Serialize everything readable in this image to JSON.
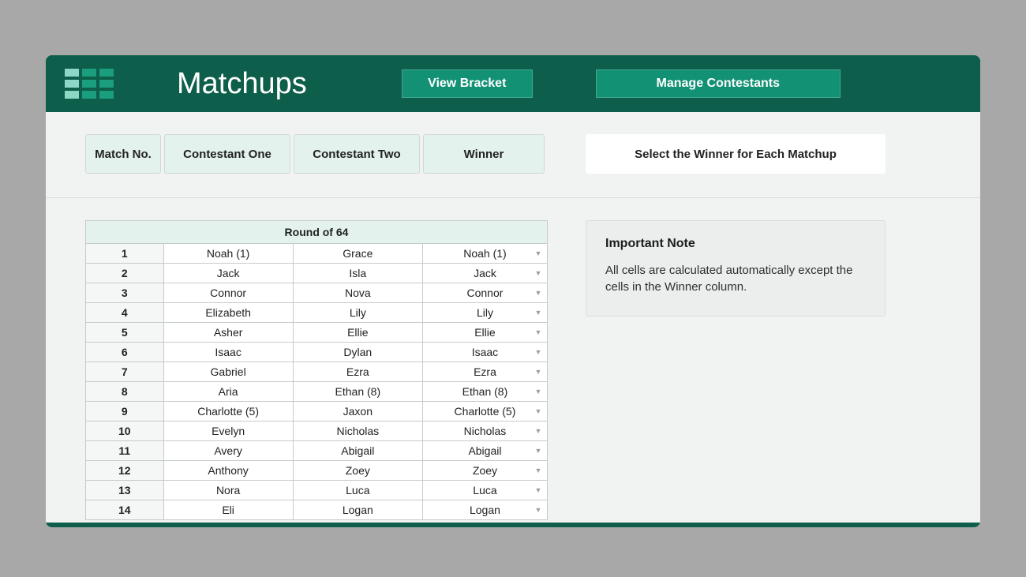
{
  "header": {
    "title": "Matchups",
    "view_bracket_label": "View Bracket",
    "manage_contestants_label": "Manage Contestants"
  },
  "columns": {
    "match_no": "Match No.",
    "contestant_one": "Contestant One",
    "contestant_two": "Contestant Two",
    "winner": "Winner"
  },
  "instruction": "Select the Winner for Each Matchup",
  "round_label": "Round of 64",
  "note": {
    "title": "Important Note",
    "body": "All cells are calculated automatically except the cells in the Winner column."
  },
  "rows": [
    {
      "no": "1",
      "c1": "Noah  (1)",
      "c2": "Grace",
      "win": "Noah  (1)"
    },
    {
      "no": "2",
      "c1": "Jack",
      "c2": "Isla",
      "win": "Jack"
    },
    {
      "no": "3",
      "c1": "Connor",
      "c2": "Nova",
      "win": "Connor"
    },
    {
      "no": "4",
      "c1": "Elizabeth",
      "c2": "Lily",
      "win": "Lily"
    },
    {
      "no": "5",
      "c1": "Asher",
      "c2": "Ellie",
      "win": "Ellie"
    },
    {
      "no": "6",
      "c1": "Isaac",
      "c2": "Dylan",
      "win": "Isaac"
    },
    {
      "no": "7",
      "c1": "Gabriel",
      "c2": "Ezra",
      "win": "Ezra"
    },
    {
      "no": "8",
      "c1": "Aria",
      "c2": "Ethan  (8)",
      "win": "Ethan  (8)"
    },
    {
      "no": "9",
      "c1": "Charlotte  (5)",
      "c2": "Jaxon",
      "win": "Charlotte  (5)"
    },
    {
      "no": "10",
      "c1": "Evelyn",
      "c2": "Nicholas",
      "win": "Nicholas"
    },
    {
      "no": "11",
      "c1": "Avery",
      "c2": "Abigail",
      "win": "Abigail"
    },
    {
      "no": "12",
      "c1": "Anthony",
      "c2": "Zoey",
      "win": "Zoey"
    },
    {
      "no": "13",
      "c1": "Nora",
      "c2": "Luca",
      "win": "Luca"
    },
    {
      "no": "14",
      "c1": "Eli",
      "c2": "Logan",
      "win": "Logan"
    }
  ],
  "colors": {
    "page_bg": "#a8a8a8",
    "frame_green": "#0d5e4a",
    "button_green": "#139174",
    "pill_bg": "#e3f2ed",
    "body_bg": "#f1f3f3",
    "border": "#c6ccca"
  }
}
